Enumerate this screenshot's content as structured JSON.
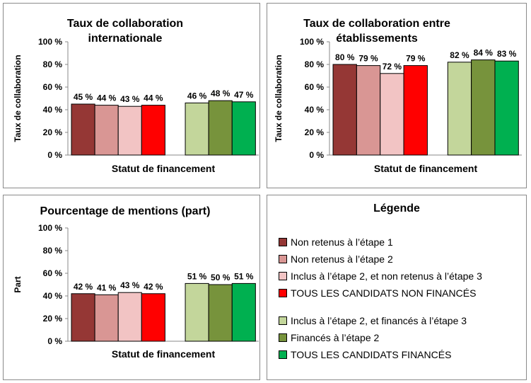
{
  "chart_data": [
    {
      "type": "bar",
      "title": "Taux de collaboration internationale",
      "title_lines": [
        "Taux de collaboration",
        "internationale"
      ],
      "xlabel": "Statut de financement",
      "ylabel": "Taux de collaboration",
      "ylim": [
        0,
        100
      ],
      "yticks": [
        "0 %",
        "20 %",
        "40 %",
        "60 %",
        "80 %",
        "100 %"
      ],
      "legend": "none",
      "grid": false,
      "values": [
        45,
        44,
        43,
        44,
        46,
        48,
        47
      ],
      "labels": [
        "45 %",
        "44 %",
        "43 %",
        "44 %",
        "46 %",
        "48 %",
        "47 %"
      ],
      "colors": [
        "#953735",
        "#D99694",
        "#F2C4C4",
        "#FF0000",
        "#C3D69B",
        "#77933C",
        "#00B050"
      ]
    },
    {
      "type": "bar",
      "title": "Taux de collaboration entre établissements",
      "title_lines": [
        "Taux de collaboration  entre",
        "établissements"
      ],
      "xlabel": "Statut de financement",
      "ylabel": "Taux de collaboration",
      "ylim": [
        0,
        100
      ],
      "yticks": [
        "0 %",
        "20 %",
        "40 %",
        "60 %",
        "80 %",
        "100 %"
      ],
      "legend": "none",
      "grid": false,
      "values": [
        80,
        79,
        72,
        79,
        82,
        84,
        83
      ],
      "labels": [
        "80 %",
        "79 %",
        "72 %",
        "79 %",
        "82 %",
        "84 %",
        "83 %"
      ],
      "colors": [
        "#953735",
        "#D99694",
        "#F2C4C4",
        "#FF0000",
        "#C3D69B",
        "#77933C",
        "#00B050"
      ]
    },
    {
      "type": "bar",
      "title": "Pourcentage de mentions (part)",
      "title_lines": [
        "Pourcentage de mentions (part)"
      ],
      "xlabel": "Statut de financement",
      "ylabel": "Part",
      "ylim": [
        0,
        100
      ],
      "yticks": [
        "0 %",
        "20 %",
        "40 %",
        "60 %",
        "80 %",
        "100 %"
      ],
      "legend": "none",
      "grid": false,
      "values": [
        42,
        41,
        43,
        42,
        51,
        50,
        51
      ],
      "labels": [
        "42 %",
        "41 %",
        "43 %",
        "42 %",
        "51 %",
        "50 %",
        "51 %"
      ],
      "colors": [
        "#953735",
        "#D99694",
        "#F2C4C4",
        "#FF0000",
        "#C3D69B",
        "#77933C",
        "#00B050"
      ]
    }
  ],
  "legend": {
    "title": "Légende",
    "items": [
      {
        "label": "Non retenus à l’étape 1",
        "color": "#953735"
      },
      {
        "label": "Non retenus à l’étape 2",
        "color": "#D99694"
      },
      {
        "label": "Inclus à l’étape 2, et non retenus à l’étape 3",
        "color": "#F2C4C4"
      },
      {
        "label": "TOUS LES CANDIDATS NON FINANCÉS",
        "color": "#FF0000"
      },
      {
        "label": "Inclus à l’étape 2, et financés à l’étape 3",
        "color": "#C3D69B"
      },
      {
        "label": "Financés à l’étape 2",
        "color": "#77933C"
      },
      {
        "label": "TOUS LES CANDIDATS FINANCÉS",
        "color": "#00B050"
      }
    ]
  }
}
